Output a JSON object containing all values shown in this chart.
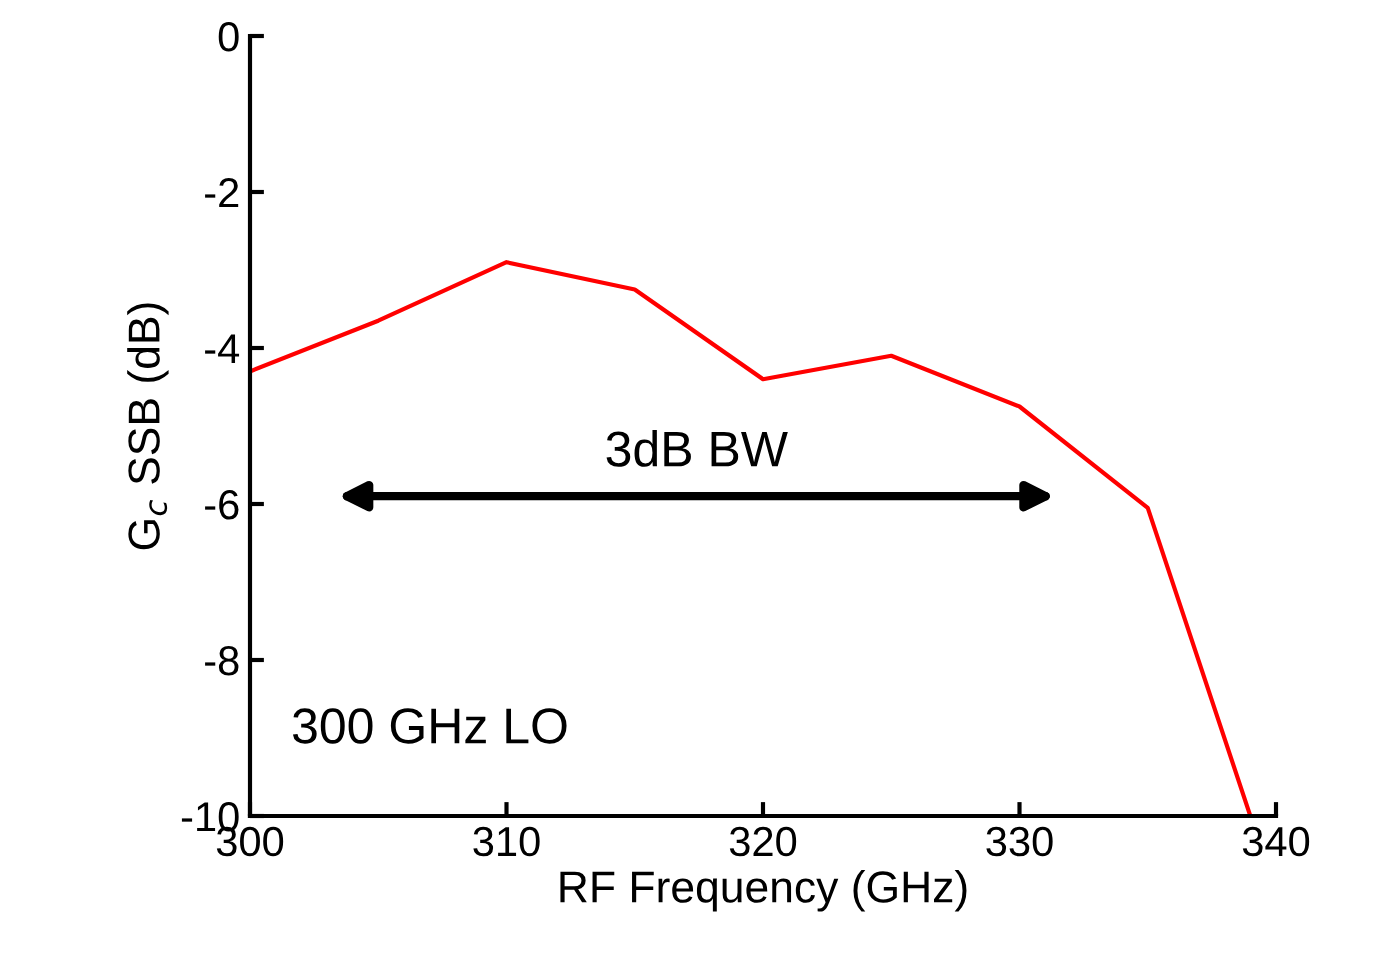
{
  "chart_data": {
    "type": "line",
    "xlabel": "RF Frequency (GHz)",
    "ylabel": "G$_{c}$ SSB (dB)",
    "x": [
      300,
      305,
      310,
      315,
      320,
      325,
      330,
      335,
      339
    ],
    "series": [
      {
        "color": "#ff0000",
        "values": [
          -4.3,
          -3.65,
          -2.9,
          -3.25,
          -4.4,
          -4.1,
          -4.75,
          -6.05,
          -10
        ]
      }
    ],
    "xlim": [
      300,
      340
    ],
    "xticks": [
      300,
      310,
      320,
      330,
      340
    ],
    "ylim": [
      -10,
      0
    ],
    "yticks": [
      0,
      -2,
      -4,
      -6,
      -8,
      -10
    ],
    "annotations": [
      "3dB BW",
      "300 GHz LO"
    ],
    "grid": false
  }
}
